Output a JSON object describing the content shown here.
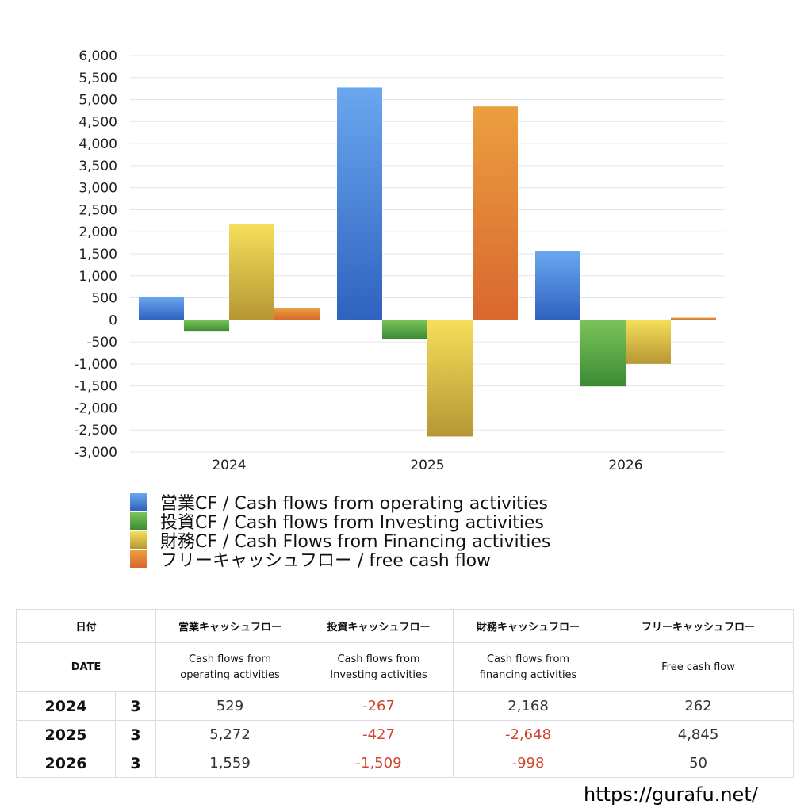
{
  "chart_data": {
    "type": "bar",
    "categories": [
      "2024",
      "2025",
      "2026"
    ],
    "ylim": [
      -3000,
      6000
    ],
    "ytick_step": 500,
    "grid": true,
    "series": [
      {
        "name": "営業CF / Cash flows from operating activities",
        "values": [
          529,
          5272,
          1559
        ],
        "color_top": "#6aa7ef",
        "color_bottom": "#2f62bf"
      },
      {
        "name": "投資CF / Cash flows from Investing activities",
        "values": [
          -267,
          -427,
          -1509
        ],
        "color_top": "#7cc459",
        "color_bottom": "#3c8a36"
      },
      {
        "name": "財務CF / Cash Flows from Financing activities",
        "values": [
          2168,
          -2648,
          -998
        ],
        "color_top": "#f5df5a",
        "color_bottom": "#b69734"
      },
      {
        "name": "フリーキャッシュフロー / free cash flow",
        "values": [
          262,
          4845,
          50
        ],
        "color_top": "#eb9f3f",
        "color_bottom": "#d9672f"
      }
    ]
  },
  "table": {
    "header_jp": [
      "日付",
      "営業キャッシュフロー",
      "投資キャッシュフロー",
      "財務キャッシュフロー",
      "フリーキャッシュフロー"
    ],
    "header_en": {
      "date": "DATE",
      "operating": [
        "Cash flows from",
        "operating activities"
      ],
      "investing": [
        "Cash flows from",
        "Investing activities"
      ],
      "financing": [
        "Cash flows from",
        "financing activities"
      ],
      "free": "Free cash flow"
    },
    "rows": [
      {
        "year": "2024",
        "month": "3",
        "operating": "529",
        "investing": "-267",
        "financing": "2,168",
        "free": "262"
      },
      {
        "year": "2025",
        "month": "3",
        "operating": "5,272",
        "investing": "-427",
        "financing": "-2,648",
        "free": "4,845"
      },
      {
        "year": "2026",
        "month": "3",
        "operating": "1,559",
        "investing": "-1,509",
        "financing": "-998",
        "free": "50"
      }
    ]
  },
  "footer": {
    "url": "https://gurafu.net/"
  }
}
